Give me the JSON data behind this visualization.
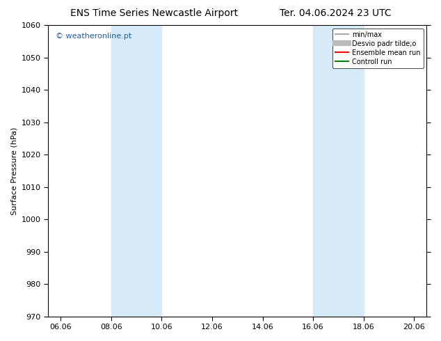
{
  "title_left": "ENS Time Series Newcastle Airport",
  "title_right": "Ter. 04.06.2024 23 UTC",
  "ylabel": "Surface Pressure (hPa)",
  "watermark": "© weatheronline.pt",
  "ylim": [
    970,
    1060
  ],
  "yticks": [
    970,
    980,
    990,
    1000,
    1010,
    1020,
    1030,
    1040,
    1050,
    1060
  ],
  "xtick_labels": [
    "06.06",
    "08.06",
    "10.06",
    "12.06",
    "14.06",
    "16.06",
    "18.06",
    "20.06"
  ],
  "shaded_bands": [
    {
      "label": "08.06",
      "end_label": "10.06",
      "color": "#d6eaf8"
    },
    {
      "label": "16.06",
      "end_label": "18.06",
      "color": "#d6eaf8"
    }
  ],
  "legend_entries": [
    {
      "label": "min/max",
      "color": "#aaaaaa",
      "lw": 1.5,
      "ls": "-"
    },
    {
      "label": "Desvio padr tilde;o",
      "color": "#bbbbbb",
      "lw": 6,
      "ls": "-"
    },
    {
      "label": "Ensemble mean run",
      "color": "red",
      "lw": 1.5,
      "ls": "-"
    },
    {
      "label": "Controll run",
      "color": "green",
      "lw": 1.5,
      "ls": "-"
    }
  ],
  "background_color": "#ffffff",
  "plot_bg_color": "#ffffff",
  "title_fontsize": 10,
  "axis_fontsize": 8,
  "tick_fontsize": 8
}
